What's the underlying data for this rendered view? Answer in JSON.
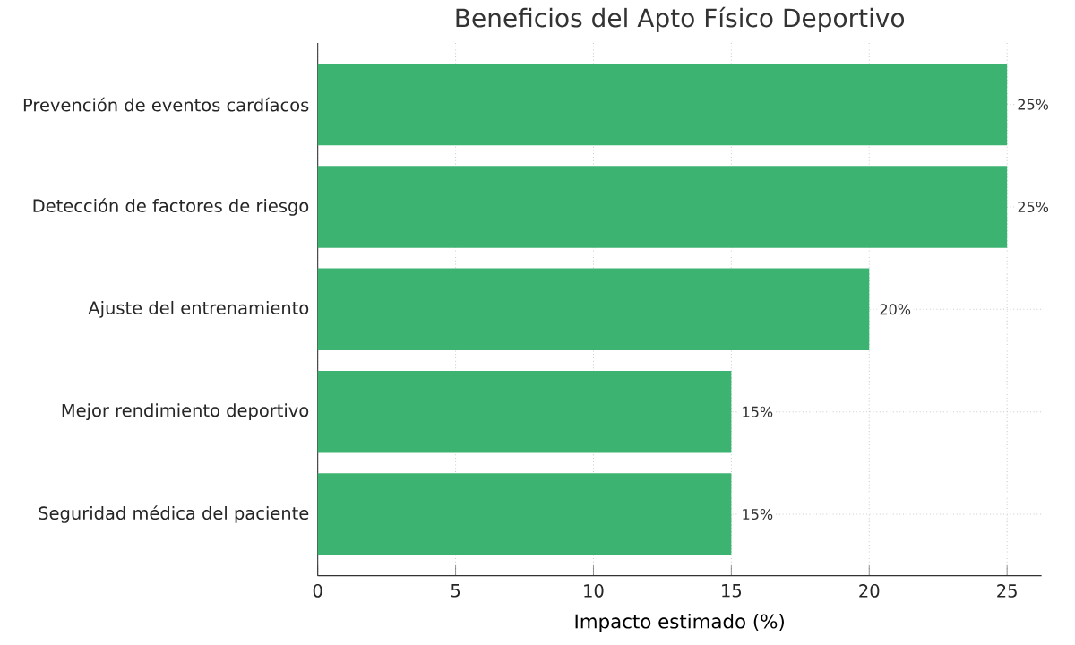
{
  "chart_data": {
    "type": "bar",
    "orientation": "horizontal",
    "title": "Beneficios del Apto Físico Deportivo",
    "categories": [
      "Prevención de eventos cardíacos",
      "Detección de factores de riesgo",
      "Ajuste del entrenamiento",
      "Mejor rendimiento deportivo",
      "Seguridad médica del paciente"
    ],
    "values": [
      25,
      25,
      20,
      15,
      15
    ],
    "value_labels": [
      "25%",
      "25%",
      "20%",
      "15%",
      "15%"
    ],
    "color": "#3cb371",
    "xlabel": "Impacto estimado (%)",
    "xlim": [
      0,
      26.25
    ],
    "xticks": [
      0,
      5,
      10,
      15,
      20,
      25
    ],
    "grid": true
  }
}
